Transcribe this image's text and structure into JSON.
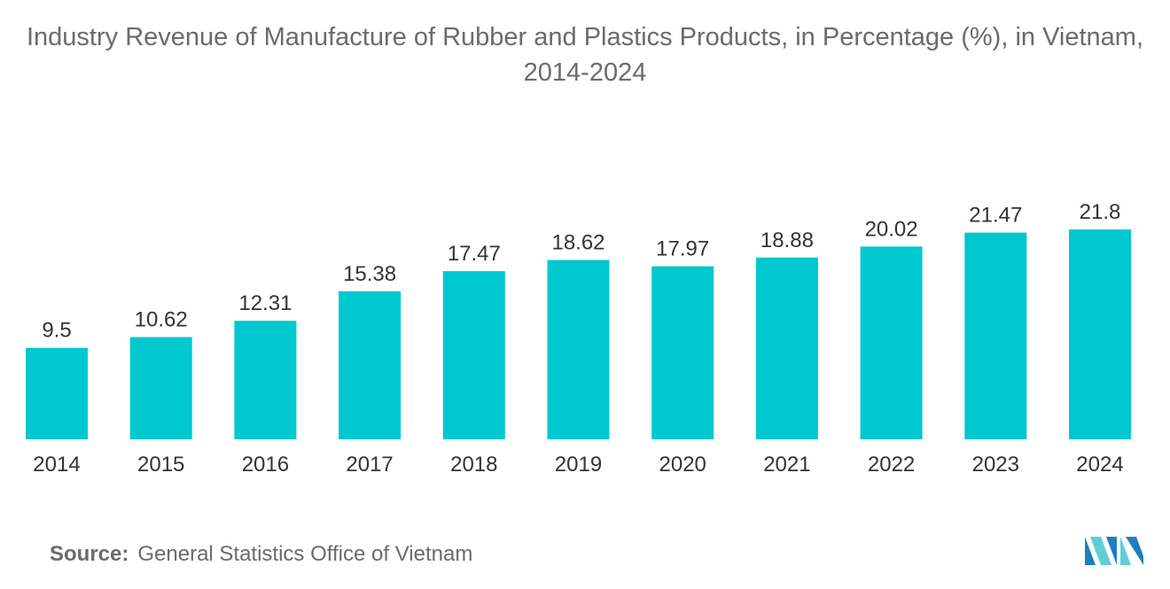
{
  "chart_data": {
    "type": "bar",
    "title": "Industry Revenue of Manufacture of Rubber and Plastics Products, in Percentage (%), in Vietnam, 2014-2024",
    "xlabel": "",
    "ylabel": "",
    "categories": [
      "2014",
      "2015",
      "2016",
      "2017",
      "2018",
      "2019",
      "2020",
      "2021",
      "2022",
      "2023",
      "2024"
    ],
    "values": [
      9.5,
      10.62,
      12.31,
      15.38,
      17.47,
      18.62,
      17.97,
      18.88,
      20.02,
      21.47,
      21.8
    ],
    "value_labels": [
      "9.5",
      "10.62",
      "12.31",
      "15.38",
      "17.47",
      "18.62",
      "17.97",
      "18.88",
      "20.02",
      "21.47",
      "21.8"
    ],
    "ylim": [
      0,
      23
    ],
    "grid": false,
    "legend": "none",
    "bar_color": "#00c8cf"
  },
  "source": {
    "label": "Source:",
    "text": "General Statistics Office of Vietnam"
  },
  "logo": {
    "icon": "mordor-intelligence-logo-icon",
    "colors": [
      "#1e7fc0",
      "#5ecfd6"
    ]
  }
}
